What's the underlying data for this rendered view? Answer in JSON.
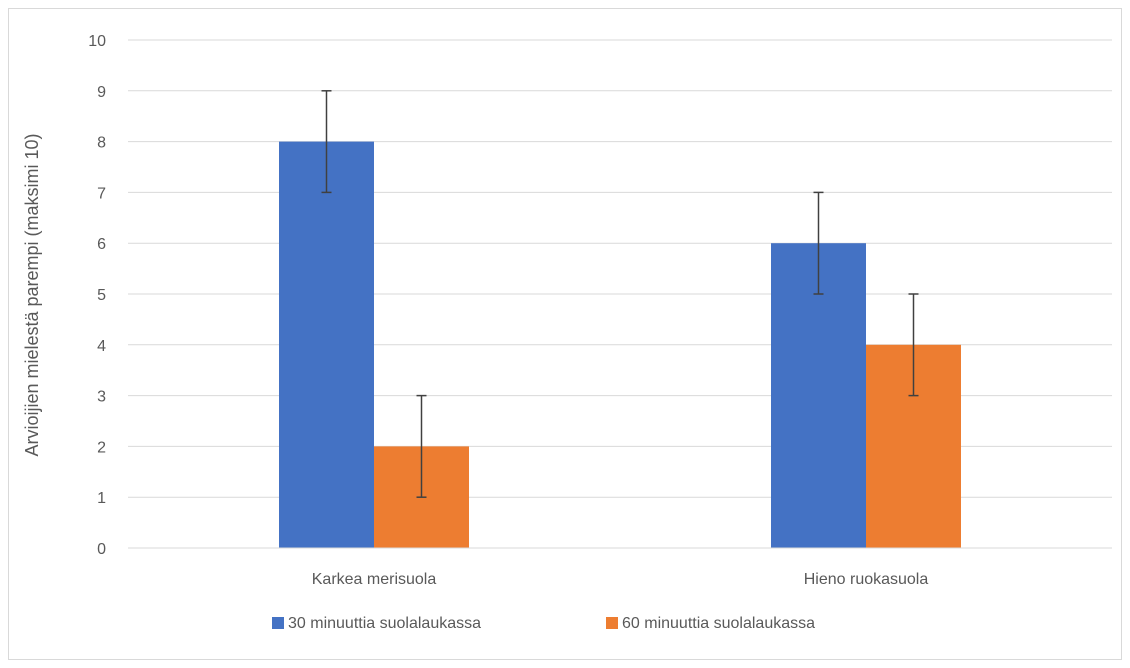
{
  "chart_data": {
    "type": "bar",
    "title": "",
    "xlabel": "",
    "ylabel": "Arvioijien mielestä parempi (maksimi 10)",
    "ylim": [
      0,
      10
    ],
    "yticks": [
      "0",
      "1",
      "2",
      "3",
      "4",
      "5",
      "6",
      "7",
      "8",
      "9",
      "10"
    ],
    "grid": true,
    "legend_position": "bottom",
    "categories": [
      "Karkea merisuola",
      "Hieno ruokasuola"
    ],
    "series": [
      {
        "name": "30 minuuttia suolalaukassa",
        "color": "#4472C4",
        "values": [
          8,
          6
        ],
        "error": [
          1,
          1
        ]
      },
      {
        "name": "60 minuuttia suolalaukassa",
        "color": "#ED7D31",
        "values": [
          2,
          4
        ],
        "error": [
          1,
          1
        ]
      }
    ]
  }
}
